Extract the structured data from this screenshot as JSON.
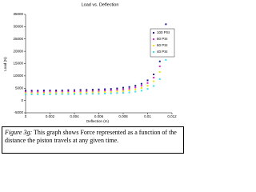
{
  "chart_data": {
    "type": "scatter",
    "title": "Load vs. Deflection",
    "x_label": "Deflection (m)",
    "y_label": "Load (N)",
    "x": [
      0,
      0.0005,
      0.001,
      0.0015,
      0.002,
      0.0025,
      0.003,
      0.0035,
      0.004,
      0.0045,
      0.005,
      0.0055,
      0.006,
      0.0065,
      0.007,
      0.0075,
      0.008,
      0.0085,
      0.009,
      0.0095,
      0.01,
      0.0105,
      0.011,
      0.0115
    ],
    "series": [
      {
        "name": "100 PSI",
        "color": "#1a1a8c",
        "values": [
          4000,
          4000,
          4000,
          4100,
          4100,
          4100,
          4100,
          4200,
          4200,
          4300,
          4300,
          4400,
          4500,
          4600,
          4700,
          4900,
          5200,
          5500,
          6000,
          6800,
          8200,
          10600,
          15900,
          31000
        ]
      },
      {
        "name": "80 PSI",
        "color": "#e020c8",
        "values": [
          3500,
          3500,
          3500,
          3500,
          3600,
          3600,
          3600,
          3600,
          3700,
          3700,
          3800,
          3800,
          3900,
          4000,
          4100,
          4300,
          4500,
          4800,
          5300,
          6000,
          7100,
          9300,
          13900,
          27000
        ]
      },
      {
        "name": "60 PSI",
        "color": "#f2e600",
        "values": [
          3000,
          3000,
          3000,
          3000,
          3100,
          3100,
          3100,
          3100,
          3100,
          3200,
          3200,
          3300,
          3300,
          3400,
          3500,
          3700,
          3800,
          4100,
          4500,
          5100,
          6000,
          7800,
          11600,
          22500
        ]
      },
      {
        "name": "40 PSI",
        "color": "#30e0f0",
        "values": [
          2500,
          2500,
          2500,
          2500,
          2500,
          2600,
          2600,
          2600,
          2600,
          2600,
          2700,
          2700,
          2700,
          2800,
          2900,
          3000,
          3100,
          3300,
          3600,
          4000,
          4700,
          5900,
          8700,
          16500
        ]
      }
    ],
    "xlim": [
      0,
      0.012
    ],
    "xticks": [
      0,
      0.002,
      0.004,
      0.006,
      0.008,
      0.01,
      0.012
    ],
    "ylim": [
      -5000,
      35000
    ],
    "yticks": [
      -5000,
      0,
      5000,
      10000,
      15000,
      20000,
      25000,
      30000,
      35000
    ],
    "grid": false,
    "legend": "right"
  },
  "caption": {
    "label": "Figure 3g:",
    "text": "This graph shows Force represented as a function of the distance the piston travels at any given time."
  }
}
